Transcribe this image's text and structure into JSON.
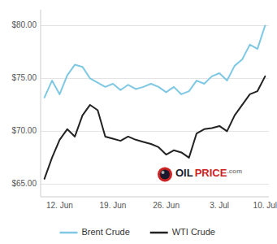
{
  "chart_data": {
    "type": "line",
    "categories": [
      null,
      null,
      "12. Jun",
      null,
      null,
      null,
      null,
      null,
      null,
      "19. Jun",
      null,
      null,
      null,
      null,
      null,
      null,
      "26. Jun",
      null,
      null,
      null,
      null,
      null,
      null,
      "3. Jul",
      null,
      null,
      null,
      null,
      null,
      "10. Jul"
    ],
    "series": [
      {
        "name": "Brent Crude",
        "color": "#7EC8E3",
        "values": [
          73.2,
          74.8,
          73.5,
          75.3,
          76.3,
          76.1,
          75.0,
          74.6,
          74.2,
          74.5,
          73.9,
          74.4,
          74.0,
          74.2,
          74.5,
          74.2,
          73.7,
          74.2,
          73.5,
          73.8,
          74.8,
          74.5,
          75.2,
          75.5,
          74.8,
          76.2,
          76.8,
          78.2,
          77.8,
          80.0
        ]
      },
      {
        "name": "WTI Crude",
        "color": "#222222",
        "values": [
          65.5,
          67.5,
          69.2,
          70.2,
          69.5,
          71.5,
          72.5,
          72.0,
          69.5,
          69.3,
          69.1,
          69.5,
          69.2,
          69.0,
          68.8,
          68.5,
          67.8,
          68.2,
          68.0,
          67.5,
          69.8,
          70.2,
          70.3,
          70.5,
          70.0,
          71.5,
          72.5,
          73.5,
          73.8,
          75.2
        ]
      }
    ],
    "ylim": [
      63.8,
      81.5
    ],
    "yticks": [
      {
        "value": 65.0,
        "label": "$65.00"
      },
      {
        "value": 70.0,
        "label": "$70.00"
      },
      {
        "value": 75.0,
        "label": "$75.00"
      },
      {
        "value": 80.0,
        "label": "$80.00"
      }
    ],
    "grid": true,
    "legend": "bottom",
    "annotations": [
      "OIL",
      "PRICE",
      ".com"
    ]
  }
}
